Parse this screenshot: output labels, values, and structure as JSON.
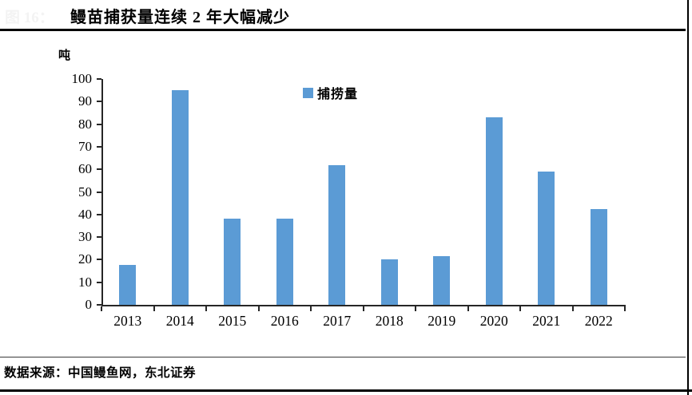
{
  "figure": {
    "faint_label": "图 16：",
    "title": "鳗苗捕获量连续 2 年大幅减少",
    "source": "数据来源：中国鳗鱼网，东北证券"
  },
  "chart_data": {
    "type": "bar",
    "title": "鳗苗捕获量连续 2 年大幅减少",
    "unit_label": "吨",
    "legend": [
      "捕捞量"
    ],
    "legend_position": "top-center-inside",
    "categories": [
      "2013",
      "2014",
      "2015",
      "2016",
      "2017",
      "2018",
      "2019",
      "2020",
      "2021",
      "2022"
    ],
    "values": [
      17.5,
      95,
      38,
      38,
      62,
      20,
      21.5,
      83,
      59,
      42.5
    ],
    "xlabel": "",
    "ylabel": "吨",
    "ylim": [
      0,
      100
    ],
    "ytick_step": 10,
    "grid": false,
    "bar_color": "#5B9BD5",
    "axis_color": "#262626"
  }
}
